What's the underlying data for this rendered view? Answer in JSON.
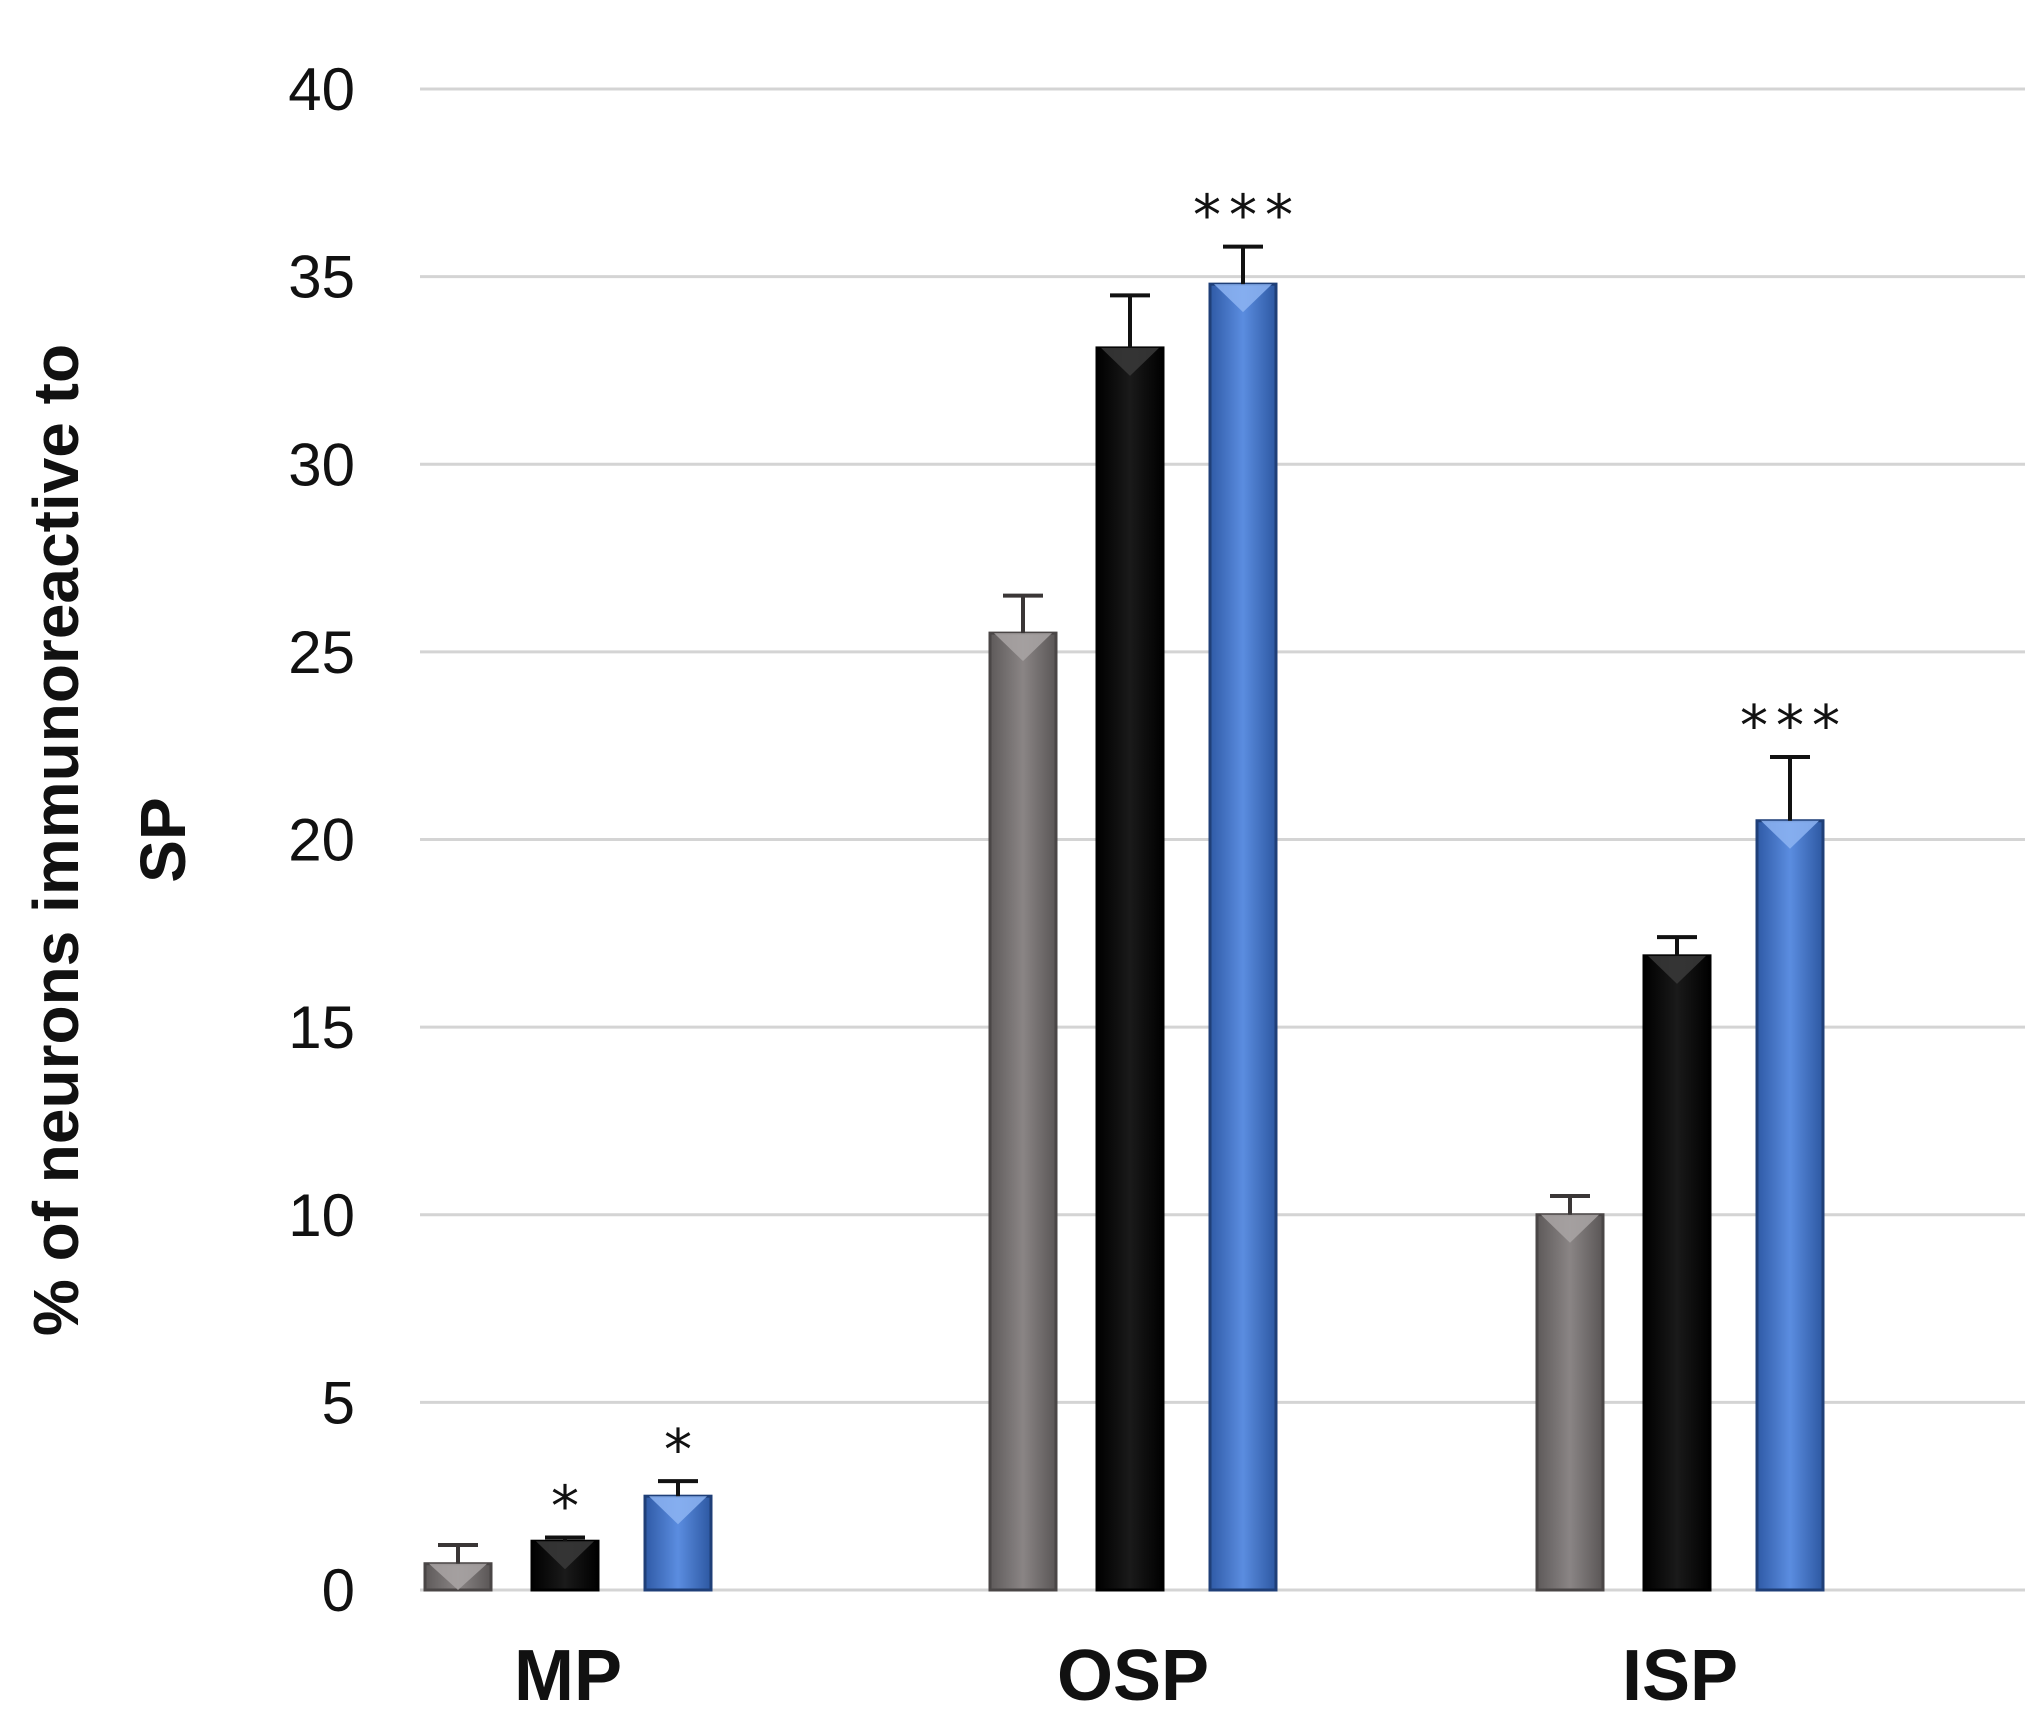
{
  "chart_data": {
    "type": "bar",
    "title": "",
    "xlabel": "",
    "ylabel_line1": "% of neurons immunoreactive to",
    "ylabel_line2": "SP",
    "categories": [
      "MP",
      "OSP",
      "ISP"
    ],
    "ylim": [
      0,
      40
    ],
    "yticks": [
      0,
      5,
      10,
      15,
      20,
      25,
      30,
      35,
      40
    ],
    "grid": true,
    "series": [
      {
        "color": "#7a7575",
        "values": [
          0.7,
          25.5,
          10.0
        ],
        "errors": [
          0.5,
          1.0,
          0.5
        ],
        "significance": [
          "",
          "",
          ""
        ]
      },
      {
        "color": "#111111",
        "values": [
          1.3,
          33.1,
          16.9
        ],
        "errors": [
          0.1,
          1.4,
          0.5
        ],
        "significance": [
          "*",
          "",
          ""
        ]
      },
      {
        "color": "#4a78c8",
        "values": [
          2.5,
          34.8,
          20.5
        ],
        "errors": [
          0.4,
          1.0,
          1.7
        ],
        "significance": [
          "*",
          "***",
          "***"
        ]
      }
    ]
  }
}
